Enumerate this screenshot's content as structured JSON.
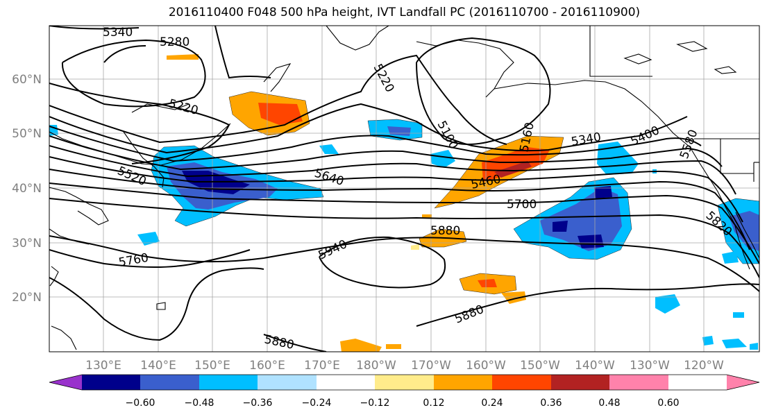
{
  "title": "2016110400 F048 500 hPa height, IVT Landfall PC (2016110700 - 2016110900)",
  "lat_labels": [
    "60°N",
    "50°N",
    "40°N",
    "30°N",
    "20°N"
  ],
  "lon_labels": [
    "130°E",
    "140°E",
    "150°E",
    "160°E",
    "170°E",
    "180°W",
    "170°W",
    "160°W",
    "150°W",
    "140°W",
    "130°W",
    "120°W"
  ],
  "height_contours": [
    "5340",
    "5280",
    "5220",
    "5220",
    "5100",
    "5160",
    "5340",
    "5400",
    "5580",
    "5520",
    "5640",
    "5460",
    "5700",
    "5820",
    "5880",
    "5940",
    "5760",
    "5880",
    "5880"
  ],
  "colorbar": {
    "ticks": [
      "−0.60",
      "−0.48",
      "−0.36",
      "−0.24",
      "−0.12",
      "0.12",
      "0.24",
      "0.36",
      "0.48",
      "0.60"
    ],
    "colors": [
      "#9932cc",
      "#00008b",
      "#3a5fcd",
      "#00bfff",
      "#b0e2ff",
      "#ffffff",
      "#ffec8b",
      "#ffa500",
      "#ff4500",
      "#b22222",
      "#ff82ab"
    ]
  }
}
